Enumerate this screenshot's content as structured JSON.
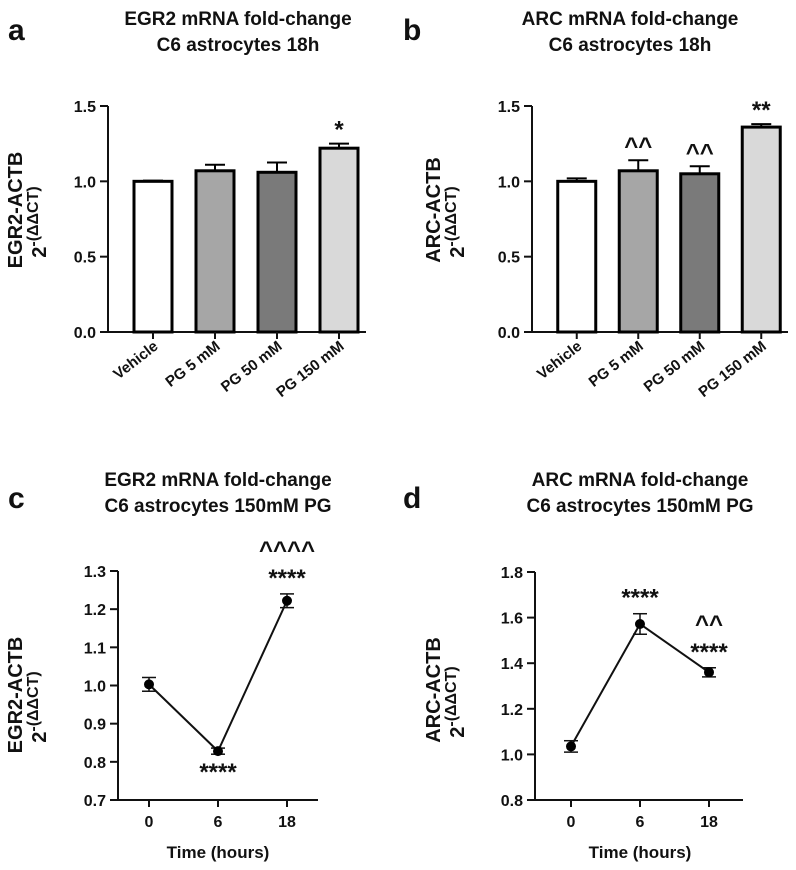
{
  "chart_data": [
    {
      "panel": "a",
      "type": "bar",
      "title": [
        "EGR2 mRNA fold-change",
        "C6 astrocytes 18h"
      ],
      "ylabel_main": "EGR2-ACTB",
      "ylabel_expr_base": "2",
      "ylabel_expr_sup": "-(ΔΔCT)",
      "xlabel": "",
      "ylim": [
        0,
        1.5
      ],
      "yticks": [
        "0.0",
        "0.5",
        "1.0",
        "1.5"
      ],
      "ytick_values": [
        0,
        0.5,
        1.0,
        1.5
      ],
      "categories": [
        "Vehicle",
        "PG 5 mM",
        "PG 50 mM",
        "PG 150 mM"
      ],
      "values": [
        1.0,
        1.07,
        1.06,
        1.22
      ],
      "errors": [
        0.005,
        0.04,
        0.065,
        0.03
      ],
      "colors": [
        "#ffffff",
        "#a6a6a6",
        "#7a7a7a",
        "#d9d9d9"
      ],
      "annotations": [
        [],
        [],
        [],
        [
          "*"
        ]
      ]
    },
    {
      "panel": "b",
      "type": "bar",
      "title": [
        "ARC mRNA fold-change",
        "C6 astrocytes 18h"
      ],
      "ylabel_main": "ARC-ACTB",
      "ylabel_expr_base": "2",
      "ylabel_expr_sup": "-(ΔΔCT)",
      "xlabel": "",
      "ylim": [
        0,
        1.5
      ],
      "yticks": [
        "0.0",
        "0.5",
        "1.0",
        "1.5"
      ],
      "ytick_values": [
        0,
        0.5,
        1.0,
        1.5
      ],
      "categories": [
        "Vehicle",
        "PG 5 mM",
        "PG 50 mM",
        "PG 150 mM"
      ],
      "values": [
        1.0,
        1.07,
        1.05,
        1.36
      ],
      "errors": [
        0.02,
        0.07,
        0.05,
        0.02
      ],
      "colors": [
        "#ffffff",
        "#a6a6a6",
        "#7a7a7a",
        "#d9d9d9"
      ],
      "annotations": [
        [],
        [
          "^^"
        ],
        [
          "^^"
        ],
        [
          "**"
        ]
      ]
    },
    {
      "panel": "c",
      "type": "line",
      "title": [
        "EGR2 mRNA fold-change",
        "C6 astrocytes 150mM PG"
      ],
      "ylabel_main": "EGR2-ACTB",
      "ylabel_expr_base": "2",
      "ylabel_expr_sup": "-(ΔΔCT)",
      "xlabel": "Time (hours)",
      "ylim": [
        0.7,
        1.3
      ],
      "yticks": [
        "0.7",
        "0.8",
        "0.9",
        "1.0",
        "1.1",
        "1.2",
        "1.3"
      ],
      "ytick_values": [
        0.7,
        0.8,
        0.9,
        1.0,
        1.1,
        1.2,
        1.3
      ],
      "x": [
        0,
        6,
        18
      ],
      "xtick_labels": [
        "0",
        "6",
        "18"
      ],
      "values": [
        1.003,
        0.828,
        1.222
      ],
      "errors": [
        0.018,
        0.008,
        0.018
      ],
      "annotations": [
        {
          "below": []
        },
        {
          "below": [
            "****"
          ]
        },
        {
          "above": [
            "^^^^",
            "****"
          ]
        }
      ]
    },
    {
      "panel": "d",
      "type": "line",
      "title": [
        "ARC mRNA fold-change",
        "C6 astrocytes 150mM PG"
      ],
      "ylabel_main": "ARC-ACTB",
      "ylabel_expr_base": "2",
      "ylabel_expr_sup": "-(ΔΔCT)",
      "xlabel": "Time (hours)",
      "ylim": [
        0.8,
        1.8
      ],
      "yticks": [
        "0.8",
        "1.0",
        "1.2",
        "1.4",
        "1.6",
        "1.8"
      ],
      "ytick_values": [
        0.8,
        1.0,
        1.2,
        1.4,
        1.6,
        1.8
      ],
      "x": [
        0,
        6,
        18
      ],
      "xtick_labels": [
        "0",
        "6",
        "18"
      ],
      "values": [
        1.035,
        1.572,
        1.36
      ],
      "errors": [
        0.025,
        0.045,
        0.02
      ],
      "annotations": [
        {
          "above": []
        },
        {
          "above": [
            "****"
          ]
        },
        {
          "above": [
            "^^",
            "****"
          ]
        }
      ]
    }
  ]
}
